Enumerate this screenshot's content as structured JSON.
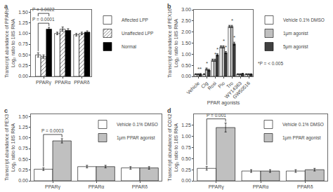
{
  "chart_data": [
    {
      "type": "bar",
      "title": "a",
      "categories": [
        "PPARγ",
        "PPARα",
        "PPARδ"
      ],
      "series": [
        {
          "name": "Affected LPP",
          "color": "white",
          "values": [
            0.5,
            1.0,
            0.97
          ],
          "errors": [
            0.05,
            0.03,
            0.03
          ]
        },
        {
          "name": "Unaffected LPP",
          "color": "white",
          "marker": "hatch",
          "values": [
            0.46,
            1.1,
            1.0
          ],
          "errors": [
            0.04,
            0.05,
            0.03
          ]
        },
        {
          "name": "Normal",
          "color": "black",
          "values": [
            1.1,
            1.07,
            1.03
          ],
          "errors": [
            0.04,
            0.04,
            0.03
          ]
        }
      ],
      "ylabel": "Transcript abundance of PPARs\nLog₂ ratio to 18S RNA",
      "ylim": [
        0,
        1.55
      ],
      "yticks": [
        {
          "value": 0,
          "label": "0.00"
        },
        {
          "value": 0.25,
          "label": "0.25"
        },
        {
          "value": 0.5,
          "label": "0.50"
        },
        {
          "value": 0.75,
          "label": "0.75"
        },
        {
          "value": 1,
          "label": "1.00"
        },
        {
          "value": 1.25,
          "label": "1.25"
        },
        {
          "value": 1.5,
          "label": "1.50"
        }
      ],
      "grid": false,
      "legend": "right",
      "annotations": [
        {
          "text": "P = 0.0001",
          "category": "PPARγ",
          "series": [
            "Affected LPP",
            "Normal"
          ]
        },
        {
          "text": "P = 0.0022",
          "category": "PPARγ",
          "series": [
            "Affected LPP",
            "Normal"
          ]
        }
      ]
    },
    {
      "type": "bar",
      "title": "b",
      "categories": [
        "Vehicle",
        "Clg",
        "Rosi",
        "Pio",
        "Tro",
        "WY14363",
        "GW50516"
      ],
      "series": [
        {
          "name": "Vehicle 0.1% DMSO",
          "color": "white",
          "values": [
            0.1,
            0.1,
            0.73,
            1.33,
            2.25,
            0.1,
            0.1
          ],
          "errors": [
            0.02,
            0.02,
            0.05,
            0.05,
            0.05,
            0.02,
            0.02
          ]
        },
        {
          "name": "1μm agonist",
          "color": "#c0c0c0",
          "values": [
            0.1,
            0.33,
            0.73,
            1.33,
            2.25,
            0.1,
            0.1
          ],
          "errors": [
            0.02,
            0.05,
            0.05,
            0.05,
            0.05,
            0.02,
            0.02
          ]
        },
        {
          "name": "5μm agonist",
          "color": "#404040",
          "values": [
            0.1,
            0.28,
            0.97,
            1.07,
            1.47,
            0.12,
            0.1
          ],
          "errors": [
            0.03,
            0.04,
            0.05,
            0.05,
            0.07,
            0.02,
            0.02
          ]
        }
      ],
      "xlabel": "PPAR agonists",
      "ylabel": "Transcript abundance of PEX16\nLog₂ ratio to 18S RNA",
      "ylim": [
        0,
        3.0
      ],
      "yticks": [
        {
          "value": 0,
          "label": "0.00"
        },
        {
          "value": 0.5,
          "label": "0.50"
        },
        {
          "value": 1,
          "label": "1.00"
        },
        {
          "value": 1.5,
          "label": "1.50"
        },
        {
          "value": 2,
          "label": "2.00"
        },
        {
          "value": 2.5,
          "label": "2.50"
        },
        {
          "value": 3,
          "label": "3.00"
        }
      ],
      "grid": false,
      "legend": "right",
      "annotations": [
        {
          "text": "*",
          "category": "Vehicle",
          "series": "1μm agonist"
        },
        {
          "text": "*",
          "category": "Vehicle",
          "series": "5μm agonist"
        },
        {
          "text": "*",
          "category": "Clg",
          "series": "1μm agonist"
        },
        {
          "text": "*",
          "category": "Rosi",
          "series": "1μm agonist"
        },
        {
          "text": "*",
          "category": "Rosi",
          "series": "5μm agonist"
        },
        {
          "text": "*",
          "category": "Pio",
          "series": "1μm agonist"
        },
        {
          "text": "*",
          "category": "Pio",
          "series": "5μm agonist"
        },
        {
          "text": "*",
          "category": "Tro",
          "series": "1μm agonist"
        },
        {
          "text": "*",
          "category": "Tro",
          "series": "5μm agonist"
        },
        {
          "text": "*P = < 0.005"
        }
      ]
    },
    {
      "type": "bar",
      "title": "c",
      "categories": [
        "PPARγ",
        "PPARα",
        "PPARδ"
      ],
      "series": [
        {
          "name": "Vehicle 0.1% DMSO",
          "color": "white",
          "values": [
            0.27,
            0.33,
            0.3
          ],
          "errors": [
            0.03,
            0.03,
            0.03
          ]
        },
        {
          "name": "1μm PPAR agonist",
          "color": "#c0c0c0",
          "values": [
            0.93,
            0.33,
            0.3
          ],
          "errors": [
            0.05,
            0.03,
            0.03
          ]
        }
      ],
      "ylabel": "Transcript abundance of PEX3\nLog₂ ratio to 18S RNA",
      "ylim": [
        0,
        1.55
      ],
      "yticks": [
        {
          "value": 0,
          "label": "0.00"
        },
        {
          "value": 0.25,
          "label": "0.25"
        },
        {
          "value": 0.5,
          "label": "0.50"
        },
        {
          "value": 0.75,
          "label": "0.75"
        },
        {
          "value": 1,
          "label": "1.00"
        },
        {
          "value": 1.25,
          "label": "1.25"
        },
        {
          "value": 1.5,
          "label": "1.50"
        }
      ],
      "grid": false,
      "legend": "upper right",
      "annotations": [
        {
          "text": "P = 0.0003",
          "category": "PPARγ",
          "series": [
            "Vehicle 0.1% DMSO",
            "1μm PPAR agonist"
          ]
        }
      ]
    },
    {
      "type": "bar",
      "title": "d",
      "categories": [
        "PPARγ",
        "PPARα",
        "PPARδ"
      ],
      "series": [
        {
          "name": "Vehicle 0.1% DMSO",
          "color": "white",
          "values": [
            0.28,
            0.22,
            0.22
          ],
          "errors": [
            0.04,
            0.03,
            0.03
          ]
        },
        {
          "name": "1μm PPAR agonist",
          "color": "#c0c0c0",
          "values": [
            1.2,
            0.22,
            0.25
          ],
          "errors": [
            0.1,
            0.03,
            0.03
          ]
        }
      ],
      "ylabel": "Transcript abundance of COX2\nLog₂ ratio to 18S RNA",
      "ylim": [
        0,
        1.5
      ],
      "yticks": [
        {
          "value": 0,
          "label": "0.00"
        },
        {
          "value": 0.25,
          "label": "0.25"
        },
        {
          "value": 0.5,
          "label": "0.50"
        },
        {
          "value": 0.75,
          "label": "0.75"
        },
        {
          "value": 1,
          "label": "1.00"
        },
        {
          "value": 1.25,
          "label": "1.25"
        }
      ],
      "grid": false,
      "legend": "upper right",
      "annotations": [
        {
          "text": "P = 0.001",
          "category": "PPARγ",
          "series": [
            "Vehicle 0.1% DMSO",
            "1μm PPAR agonist"
          ]
        }
      ]
    }
  ]
}
